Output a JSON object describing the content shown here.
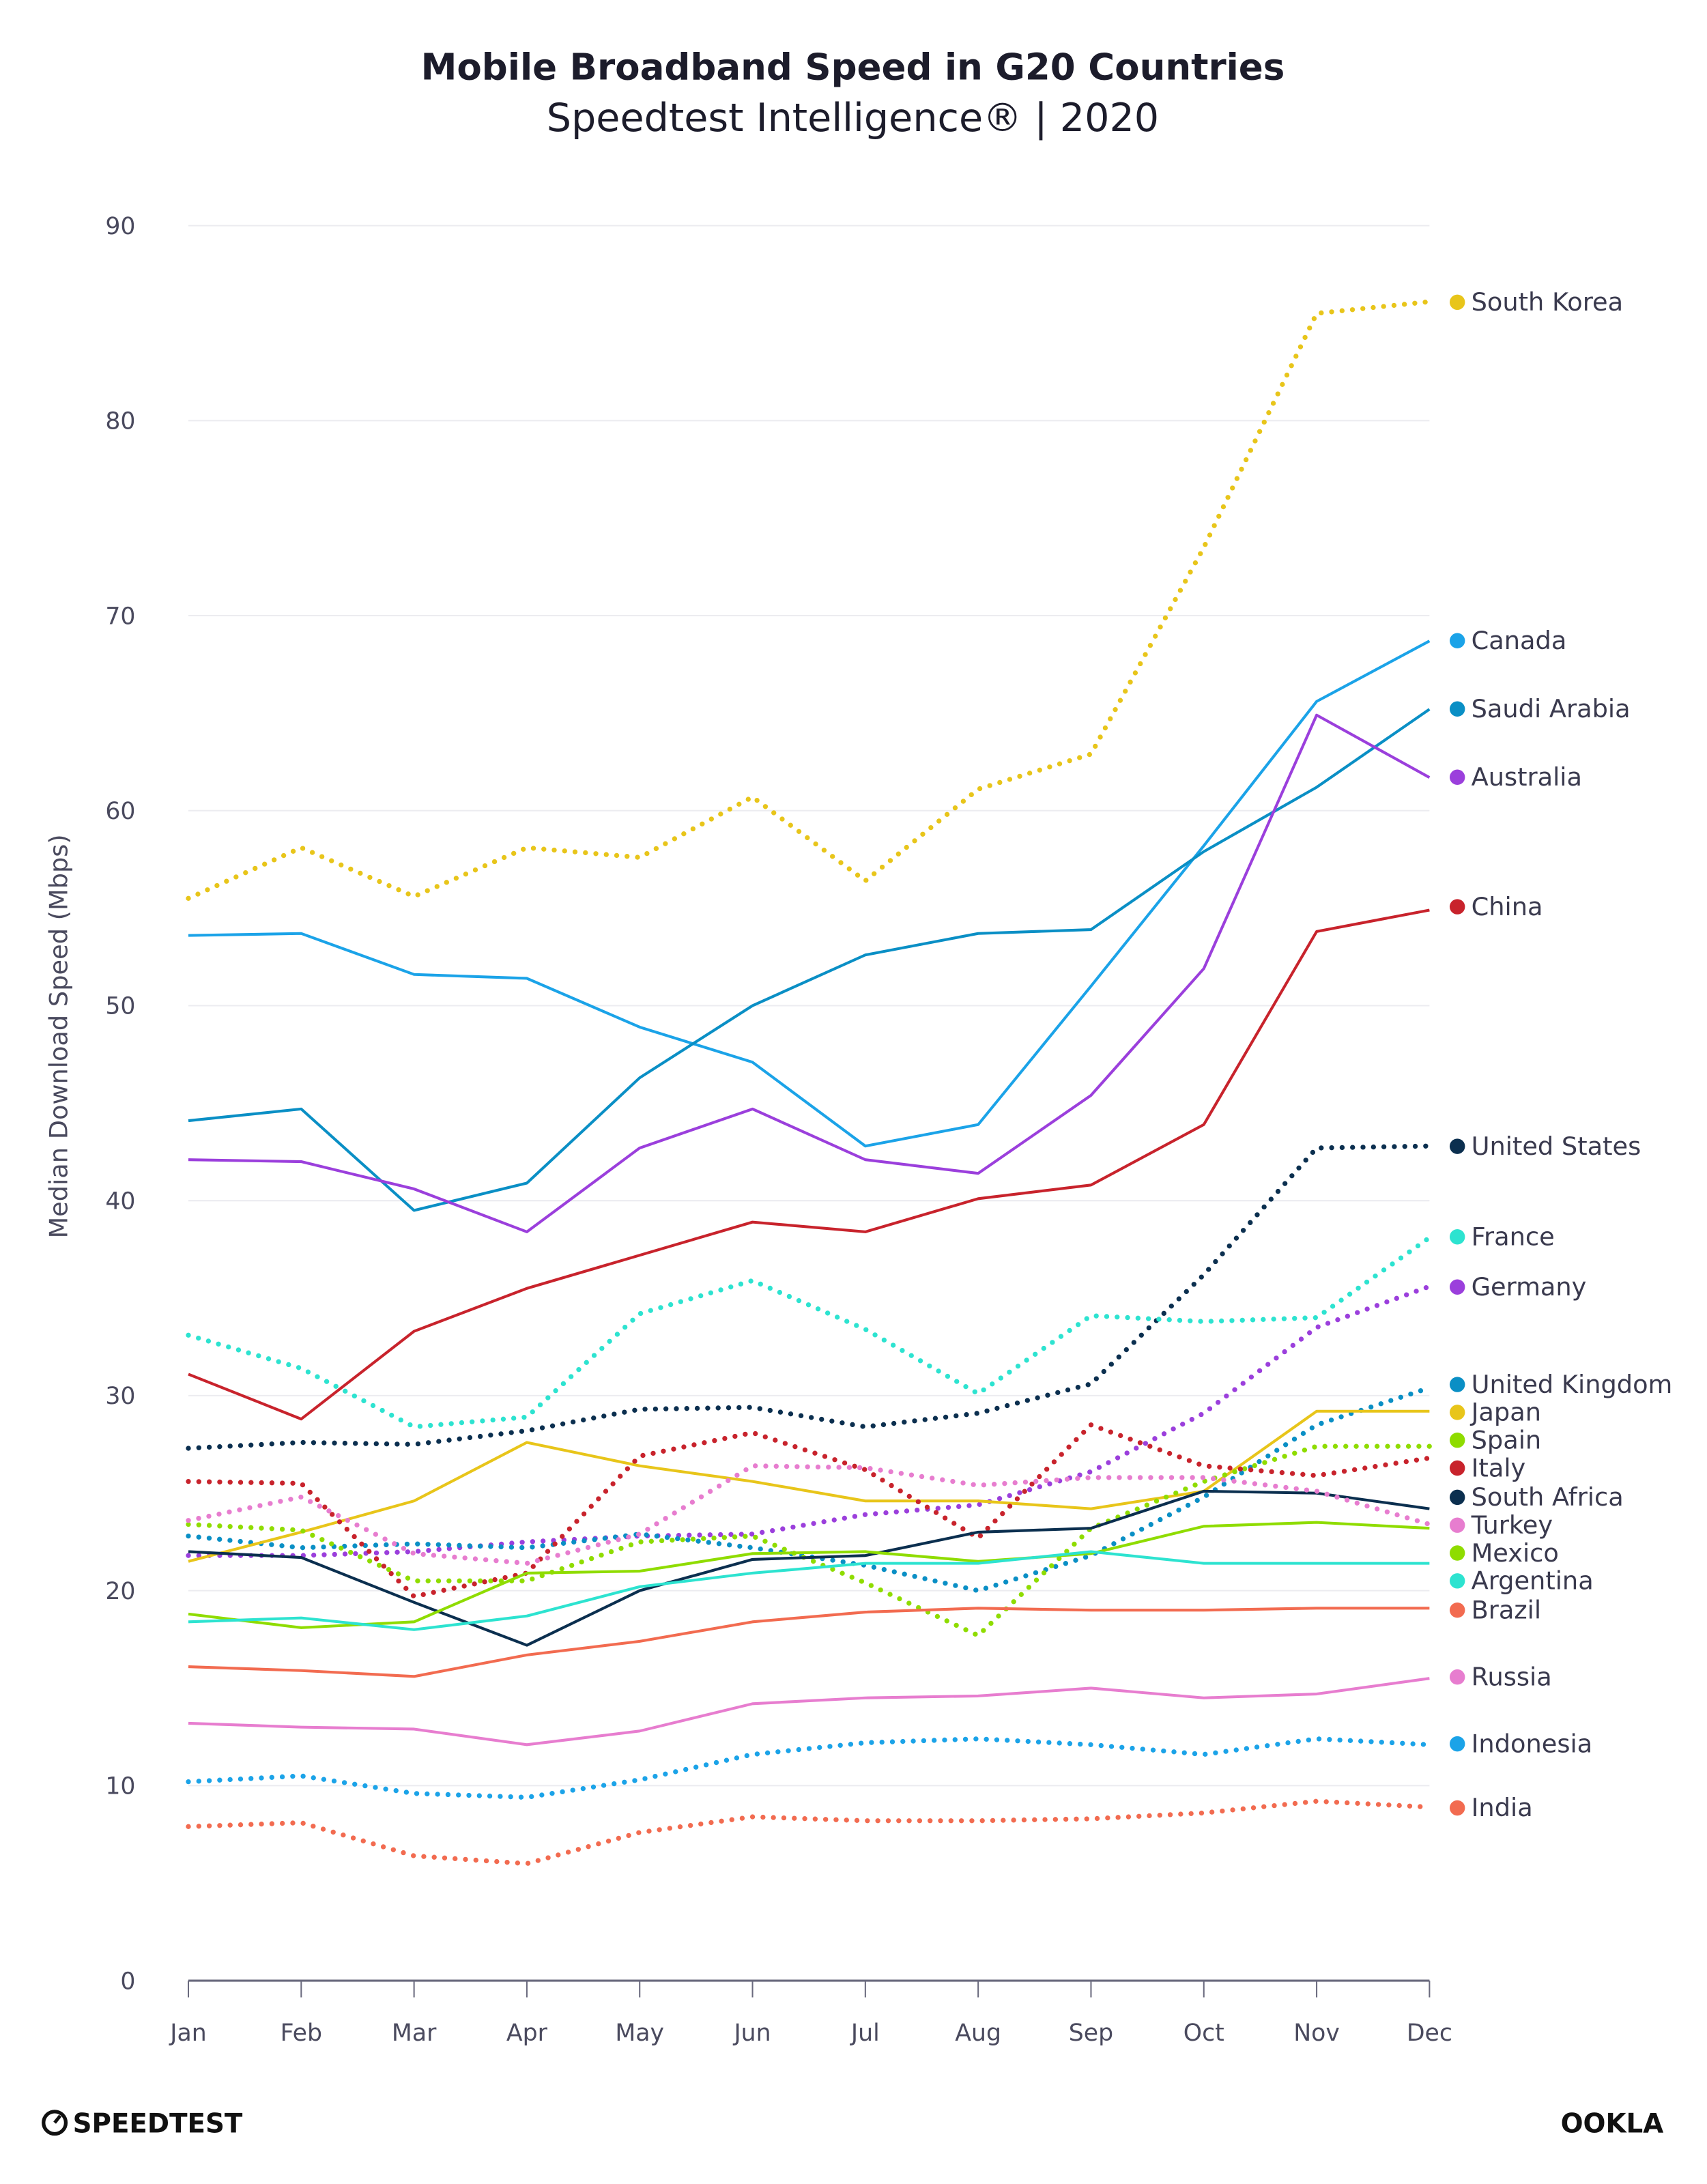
{
  "chart_data": {
    "type": "line",
    "title": "Mobile Broadband Speed in G20 Countries",
    "subtitle": "Speedtest Intelligence® | 2020",
    "xlabel": "",
    "ylabel": "Median Download Speed (Mbps)",
    "ylim": [
      0,
      90
    ],
    "yticks": [
      "0",
      "10",
      "20",
      "30",
      "40",
      "50",
      "60",
      "70",
      "80",
      "90"
    ],
    "grid": true,
    "legend": "right (direct labels)",
    "categories": [
      "Jan",
      "Feb",
      "Mar",
      "Apr",
      "May",
      "Jun",
      "Jul",
      "Aug",
      "Sep",
      "Oct",
      "Nov",
      "Dec"
    ],
    "series": [
      {
        "name": "South Korea",
        "style": "dotted",
        "color": "#e8c51a",
        "values": [
          55.5,
          58.1,
          55.6,
          58.1,
          57.6,
          60.7,
          56.4,
          61.1,
          62.9,
          73.5,
          85.5,
          86.1
        ]
      },
      {
        "name": "Canada",
        "style": "solid",
        "color": "#1ba3e8",
        "values": [
          53.6,
          53.7,
          51.6,
          51.4,
          48.9,
          47.1,
          42.8,
          43.9,
          51.0,
          58.2,
          65.6,
          68.7
        ]
      },
      {
        "name": "Saudi Arabia",
        "style": "solid",
        "color": "#0a8fc5",
        "values": [
          44.1,
          44.7,
          39.5,
          40.9,
          46.3,
          50.0,
          52.6,
          53.7,
          53.9,
          57.9,
          61.2,
          65.2
        ]
      },
      {
        "name": "Australia",
        "style": "solid",
        "color": "#9b3fdc",
        "values": [
          42.1,
          42.0,
          40.6,
          38.4,
          42.7,
          44.7,
          42.1,
          41.4,
          45.4,
          51.9,
          64.9,
          61.7
        ]
      },
      {
        "name": "China",
        "style": "solid",
        "color": "#c8232c",
        "values": [
          31.1,
          28.8,
          33.3,
          35.5,
          37.2,
          38.9,
          38.4,
          40.1,
          40.8,
          43.9,
          53.8,
          54.9
        ]
      },
      {
        "name": "United States",
        "style": "dotted",
        "color": "#0b2f4f",
        "values": [
          27.3,
          27.6,
          27.5,
          28.2,
          29.3,
          29.4,
          28.4,
          29.1,
          30.6,
          36.2,
          42.7,
          42.8
        ]
      },
      {
        "name": "France",
        "style": "dotted",
        "color": "#2de3d0",
        "values": [
          33.1,
          31.4,
          28.4,
          28.9,
          34.2,
          35.9,
          33.4,
          30.1,
          34.1,
          33.8,
          34.0,
          38.1
        ]
      },
      {
        "name": "Germany",
        "style": "dotted",
        "color": "#9b3fdc",
        "values": [
          21.8,
          21.8,
          22.0,
          22.5,
          22.8,
          22.9,
          23.9,
          24.4,
          26.1,
          29.1,
          33.5,
          35.6
        ]
      },
      {
        "name": "United Kingdom",
        "style": "dotted",
        "color": "#0a8fc5",
        "values": [
          22.8,
          22.2,
          22.4,
          22.2,
          22.9,
          22.2,
          21.3,
          20.0,
          21.8,
          24.8,
          28.5,
          30.4
        ]
      },
      {
        "name": "Japan",
        "style": "solid",
        "color": "#e8c51a",
        "values": [
          21.5,
          23.0,
          24.6,
          27.6,
          26.4,
          25.6,
          24.6,
          24.6,
          24.2,
          25.1,
          29.2,
          29.2
        ]
      },
      {
        "name": "Spain",
        "style": "dotted",
        "color": "#8fdc00",
        "values": [
          23.4,
          23.1,
          20.5,
          20.5,
          22.5,
          22.8,
          20.4,
          17.7,
          23.2,
          25.6,
          27.4,
          27.4
        ]
      },
      {
        "name": "Italy",
        "style": "dotted",
        "color": "#c8232c",
        "values": [
          25.6,
          25.5,
          19.7,
          20.9,
          26.9,
          28.1,
          26.2,
          22.7,
          28.5,
          26.4,
          25.9,
          26.8
        ]
      },
      {
        "name": "South Africa",
        "style": "solid",
        "color": "#0b2f4f",
        "values": [
          22.0,
          21.7,
          19.4,
          17.2,
          20.0,
          21.6,
          21.8,
          23.0,
          23.2,
          25.1,
          25.0,
          24.2
        ]
      },
      {
        "name": "Turkey",
        "style": "dotted",
        "color": "#e77dcf",
        "values": [
          23.6,
          24.8,
          21.9,
          21.4,
          22.9,
          26.4,
          26.3,
          25.4,
          25.8,
          25.8,
          25.1,
          23.4
        ]
      },
      {
        "name": "Mexico",
        "style": "solid",
        "color": "#8fdc00",
        "values": [
          18.8,
          18.1,
          18.4,
          20.9,
          21.0,
          21.9,
          22.0,
          21.5,
          21.9,
          23.3,
          23.5,
          23.2
        ]
      },
      {
        "name": "Argentina",
        "style": "solid",
        "color": "#2de3d0",
        "values": [
          18.4,
          18.6,
          18.0,
          18.7,
          20.2,
          20.9,
          21.4,
          21.4,
          22.0,
          21.4,
          21.4,
          21.4
        ]
      },
      {
        "name": "Brazil",
        "style": "solid",
        "color": "#f26b50",
        "values": [
          16.1,
          15.9,
          15.6,
          16.7,
          17.4,
          18.4,
          18.9,
          19.1,
          19.0,
          19.0,
          19.1,
          19.1
        ]
      },
      {
        "name": "Russia",
        "style": "solid",
        "color": "#e77dcf",
        "values": [
          13.2,
          13.0,
          12.9,
          12.1,
          12.8,
          14.2,
          14.5,
          14.6,
          15.0,
          14.5,
          14.7,
          15.5
        ]
      },
      {
        "name": "Indonesia",
        "style": "dotted",
        "color": "#1ba3e8",
        "values": [
          10.2,
          10.5,
          9.6,
          9.4,
          10.3,
          11.6,
          12.2,
          12.4,
          12.1,
          11.6,
          12.4,
          12.1
        ]
      },
      {
        "name": "India",
        "style": "dotted",
        "color": "#f26b50",
        "values": [
          7.9,
          8.1,
          6.4,
          6.0,
          7.6,
          8.4,
          8.2,
          8.2,
          8.3,
          8.6,
          9.2,
          8.9
        ]
      }
    ]
  },
  "footer": {
    "left_logo": "SPEEDTEST",
    "right_logo": "OOKLA"
  }
}
